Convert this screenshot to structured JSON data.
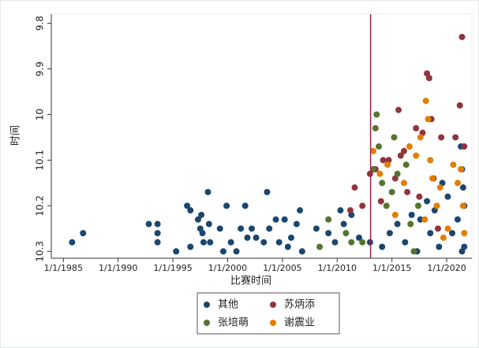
{
  "chart_data": {
    "type": "scatter",
    "x_label": "比赛时间",
    "y_label": "时间",
    "xlim": [
      1983.9,
      2022.3
    ],
    "xticks": [
      {
        "value": 1985,
        "label": "1/1/1985"
      },
      {
        "value": 1990,
        "label": "1/1/1990"
      },
      {
        "value": 1995,
        "label": "1/1/1995"
      },
      {
        "value": 2000,
        "label": "1/1/2000"
      },
      {
        "value": 2005,
        "label": "1/1/2005"
      },
      {
        "value": 2010,
        "label": "1/1/2010"
      },
      {
        "value": 2015,
        "label": "1/1/2015"
      },
      {
        "value": 2020,
        "label": "1/1/2020"
      }
    ],
    "ylim": [
      9.78,
      10.315
    ],
    "y_reversed": true,
    "yticks": [
      9.8,
      9.9,
      10,
      10.1,
      10.2,
      10.3
    ],
    "grid": false,
    "legend": "bottom",
    "reference_line": {
      "x": 2013.05,
      "color": "#a0204a"
    },
    "series": [
      {
        "name": "其他",
        "color": "#1a476f",
        "x": [
          1985.8,
          1986.8,
          1992.8,
          1993.6,
          1993.6,
          1993.6,
          1995.3,
          1996.3,
          1996.6,
          1996.6,
          1997.3,
          1997.5,
          1997.6,
          1997.7,
          1997.8,
          1998.2,
          1998.3,
          1998.4,
          1999.3,
          1999.6,
          1999.9,
          2000.3,
          2000.8,
          2001.2,
          2001.6,
          2001.8,
          2002.2,
          2002.6,
          2003.3,
          2003.6,
          2003.8,
          2004.4,
          2004.7,
          2005.2,
          2005.5,
          2005.8,
          2006.3,
          2006.6,
          2006.8,
          2008.1,
          2009.2,
          2009.8,
          2010.3,
          2010.6,
          2011.3,
          2012.0,
          2013.0,
          2014.1,
          2014.8,
          2015.5,
          2016.2,
          2016.8,
          2017.3,
          2017.6,
          2018.2,
          2018.5,
          2018.9,
          2019.3,
          2019.6,
          2020.1,
          2020.5,
          2021.0,
          2021.3,
          2021.4,
          2021.5,
          2021.6,
          2021.4,
          2021.6
        ],
        "values": [
          10.28,
          10.26,
          10.24,
          10.24,
          10.26,
          10.28,
          10.3,
          10.2,
          10.21,
          10.29,
          10.23,
          10.25,
          10.22,
          10.26,
          10.28,
          10.17,
          10.24,
          10.28,
          10.25,
          10.3,
          10.2,
          10.28,
          10.3,
          10.25,
          10.2,
          10.27,
          10.25,
          10.27,
          10.28,
          10.17,
          10.25,
          10.23,
          10.28,
          10.23,
          10.29,
          10.27,
          10.24,
          10.21,
          10.3,
          10.25,
          10.26,
          10.28,
          10.21,
          10.24,
          10.22,
          10.27,
          10.28,
          10.29,
          10.26,
          10.24,
          10.28,
          10.22,
          10.3,
          10.23,
          10.19,
          10.26,
          10.21,
          10.29,
          10.15,
          10.18,
          10.26,
          10.23,
          10.07,
          10.12,
          10.16,
          10.2,
          10.3,
          10.29
        ]
      },
      {
        "name": "苏炳添",
        "color": "#90353b",
        "x": [
          2011.2,
          2011.6,
          2012.3,
          2013.0,
          2013.5,
          2014.0,
          2014.2,
          2014.7,
          2015.3,
          2015.6,
          2015.8,
          2016.1,
          2016.4,
          2017.2,
          2017.8,
          2018.2,
          2018.4,
          2018.6,
          2018.8,
          2019.5,
          2020.8,
          2021.2,
          2021.4,
          2021.6,
          2019.2,
          2017.5
        ],
        "values": [
          10.21,
          10.16,
          10.2,
          10.13,
          10.12,
          10.19,
          10.1,
          10.1,
          10.14,
          9.99,
          10.09,
          10.08,
          10.17,
          10.03,
          10.04,
          9.91,
          9.92,
          10.01,
          10.14,
          10.05,
          10.05,
          9.98,
          9.83,
          10.07,
          10.25,
          10.18
        ]
      },
      {
        "name": "张培萌",
        "color": "#55752f",
        "x": [
          2008.4,
          2009.2,
          2010.8,
          2011.3,
          2012.3,
          2013.3,
          2013.5,
          2013.6,
          2013.8,
          2014.1,
          2014.5,
          2015.0,
          2015.2,
          2015.5,
          2016.3,
          2016.7,
          2017.0,
          2017.4
        ],
        "values": [
          10.29,
          10.23,
          10.26,
          10.28,
          10.28,
          10.12,
          10.03,
          10.0,
          10.07,
          10.15,
          10.2,
          10.17,
          10.05,
          10.13,
          10.11,
          10.24,
          10.3,
          10.2
        ]
      },
      {
        "name": "谢震业",
        "color": "#e37e00",
        "x": [
          2013.3,
          2013.9,
          2014.6,
          2015.3,
          2016.1,
          2016.6,
          2017.2,
          2017.6,
          2018.0,
          2018.1,
          2018.3,
          2018.5,
          2018.7,
          2019.1,
          2019.4,
          2019.7,
          2020.1,
          2020.6,
          2021.0,
          2021.3,
          2021.5,
          2021.6
        ],
        "values": [
          10.08,
          10.13,
          10.11,
          10.22,
          10.15,
          10.07,
          10.09,
          10.05,
          10.23,
          9.97,
          10.01,
          10.1,
          10.14,
          10.2,
          10.16,
          10.27,
          10.25,
          10.11,
          10.15,
          10.12,
          10.2,
          10.26
        ]
      }
    ]
  }
}
